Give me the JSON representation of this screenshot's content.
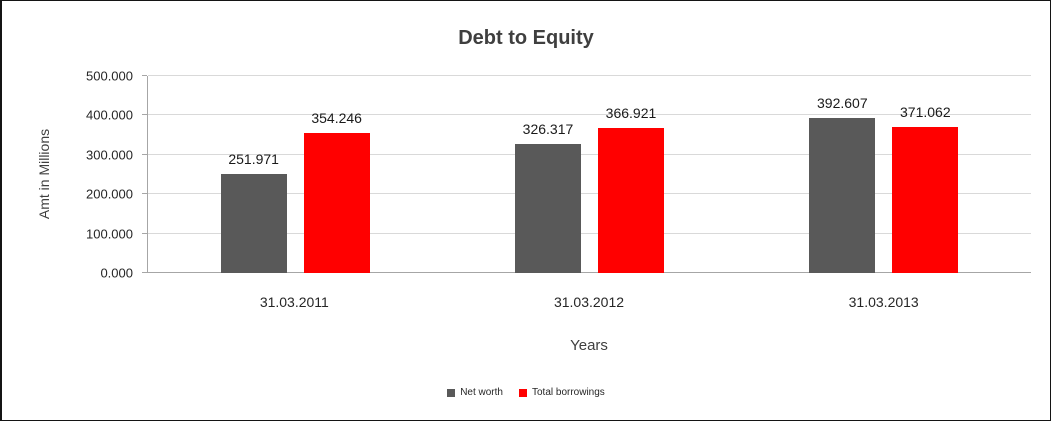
{
  "chart_data": {
    "type": "bar",
    "title": "Debt to Equity",
    "xlabel": "Years",
    "ylabel": "Amt in Millions",
    "categories": [
      "31.03.2011",
      "31.03.2012",
      "31.03.2013"
    ],
    "series": [
      {
        "name": "Net worth",
        "color": "#595959",
        "values": [
          251.971,
          326.317,
          392.607
        ],
        "labels": [
          "251.971",
          "326.317",
          "392.607"
        ]
      },
      {
        "name": "Total borrowings",
        "color": "#ff0000",
        "values": [
          354.246,
          366.921,
          371.062
        ],
        "labels": [
          "354.246",
          "366.921",
          "371.062"
        ]
      }
    ],
    "ylim": [
      0,
      500
    ],
    "ytick_step": 100,
    "ytick_labels": [
      "0.000",
      "100.000",
      "200.000",
      "300.000",
      "400.000",
      "500.000"
    ],
    "grid": true,
    "legend_position": "bottom"
  }
}
